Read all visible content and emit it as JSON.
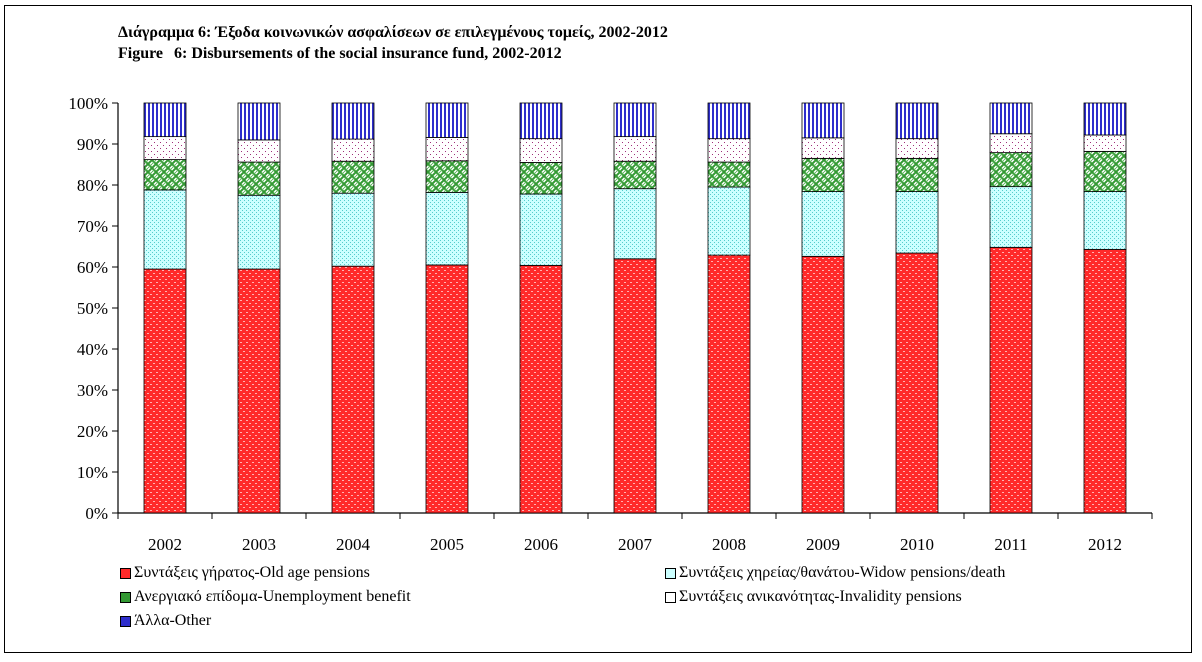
{
  "chart_data": {
    "type": "bar",
    "stacked": true,
    "percent": true,
    "title": "Διάγραμμα 6: Έξοδα κοινωνικών ασφαλίσεων σε επιλεγμένους τομείς, 2002-2012",
    "subtitle": "Figure\t6: Disbursements of the social insurance fund, 2002-2012",
    "xlabel": "",
    "ylabel": "",
    "ylim": [
      0,
      100
    ],
    "yticks": [
      "0%",
      "10%",
      "20%",
      "30%",
      "40%",
      "50%",
      "60%",
      "70%",
      "80%",
      "90%",
      "100%"
    ],
    "grid": false,
    "legend_position": "bottom",
    "categories": [
      "2002",
      "2003",
      "2004",
      "2005",
      "2006",
      "2007",
      "2008",
      "2009",
      "2010",
      "2011",
      "2012"
    ],
    "series": [
      {
        "name": "Συντάξεις γήρατος-Old age pensions",
        "color": "#ff2a2a",
        "values": [
          59.5,
          59.5,
          60.2,
          60.5,
          60.4,
          62.0,
          62.9,
          62.6,
          63.4,
          64.8,
          64.3
        ]
      },
      {
        "name": "Συντάξεις χηρείας/θανάτου-Widow pensions/death",
        "color": "#ccffff",
        "values": [
          19.3,
          18.0,
          17.8,
          17.7,
          17.4,
          17.1,
          16.6,
          15.8,
          15.0,
          14.8,
          14.1
        ]
      },
      {
        "name": "Ανεργιακό επίδομα-Unemployment benefit",
        "color": "#339933",
        "values": [
          7.4,
          8.1,
          7.8,
          7.7,
          7.7,
          6.7,
          6.1,
          8.1,
          8.1,
          8.3,
          9.8
        ]
      },
      {
        "name": "Συντάξεις ανικανότητας-Invalidity pensions",
        "color": "#ffffff",
        "values": [
          5.6,
          5.4,
          5.4,
          5.7,
          5.8,
          6.0,
          5.7,
          5.0,
          4.8,
          4.6,
          4.0
        ]
      },
      {
        "name": "Άλλα-Other",
        "color": "#2e2ecc",
        "values": [
          8.2,
          9.0,
          8.8,
          8.4,
          8.7,
          8.2,
          8.7,
          8.5,
          8.7,
          7.5,
          7.8
        ]
      }
    ]
  }
}
